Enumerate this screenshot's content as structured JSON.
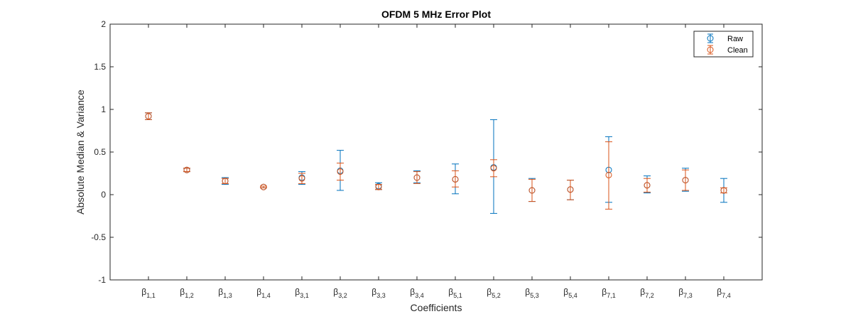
{
  "chart_data": {
    "type": "scatter",
    "title": "OFDM 5 MHz Error Plot",
    "xlabel": "Coefficients",
    "ylabel": "Absolute Median & Variance",
    "ylim": [
      -1,
      2
    ],
    "yticks": [
      "-1",
      "-0.5",
      "0",
      "0.5",
      "1",
      "1.5",
      "2"
    ],
    "grid": false,
    "legend_position": "top-right",
    "categories": [
      {
        "sym": "β",
        "sub": "1,1"
      },
      {
        "sym": "β",
        "sub": "1,2"
      },
      {
        "sym": "β",
        "sub": "1,3"
      },
      {
        "sym": "β",
        "sub": "1,4"
      },
      {
        "sym": "β",
        "sub": "3,1"
      },
      {
        "sym": "β",
        "sub": "3,2"
      },
      {
        "sym": "β",
        "sub": "3,3"
      },
      {
        "sym": "β",
        "sub": "3,4"
      },
      {
        "sym": "β",
        "sub": "5,1"
      },
      {
        "sym": "β",
        "sub": "5,2"
      },
      {
        "sym": "β",
        "sub": "5,3"
      },
      {
        "sym": "β",
        "sub": "5,4"
      },
      {
        "sym": "β",
        "sub": "7,1"
      },
      {
        "sym": "β",
        "sub": "7,2"
      },
      {
        "sym": "β",
        "sub": "7,3"
      },
      {
        "sym": "β",
        "sub": "7,4"
      }
    ],
    "series": [
      {
        "name": "Raw",
        "color": "#0072BD",
        "values": [
          0.92,
          0.29,
          0.16,
          0.09,
          0.2,
          0.28,
          0.1,
          0.2,
          0.18,
          0.32,
          0.05,
          0.06,
          0.29,
          0.11,
          0.17,
          0.05
        ],
        "lower": [
          0.88,
          0.27,
          0.12,
          0.08,
          0.12,
          0.05,
          0.06,
          0.14,
          0.01,
          -0.22,
          -0.08,
          -0.06,
          -0.09,
          0.02,
          0.04,
          -0.09
        ],
        "upper": [
          0.96,
          0.31,
          0.2,
          0.1,
          0.27,
          0.52,
          0.14,
          0.28,
          0.36,
          0.88,
          0.19,
          0.17,
          0.68,
          0.22,
          0.31,
          0.19
        ]
      },
      {
        "name": "Clean",
        "color": "#D95319",
        "values": [
          0.92,
          0.29,
          0.16,
          0.09,
          0.19,
          0.27,
          0.09,
          0.2,
          0.18,
          0.31,
          0.05,
          0.06,
          0.23,
          0.11,
          0.17,
          0.05
        ],
        "lower": [
          0.88,
          0.27,
          0.13,
          0.08,
          0.13,
          0.17,
          0.06,
          0.13,
          0.09,
          0.21,
          -0.08,
          -0.06,
          -0.17,
          0.03,
          0.05,
          0.02
        ],
        "upper": [
          0.96,
          0.31,
          0.19,
          0.1,
          0.25,
          0.37,
          0.12,
          0.27,
          0.28,
          0.41,
          0.18,
          0.17,
          0.62,
          0.19,
          0.29,
          0.08
        ]
      }
    ]
  }
}
